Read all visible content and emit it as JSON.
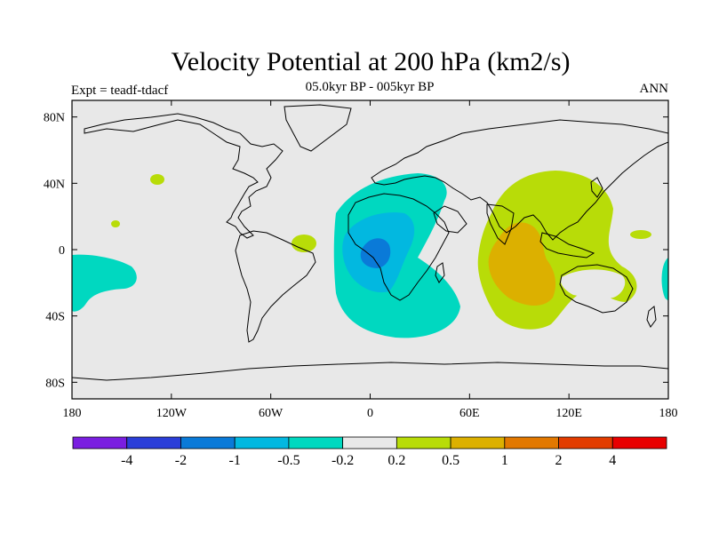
{
  "header": {
    "title": "Velocity Potential at 200 hPa (km2/s)",
    "subtitle": "05.0kyr BP - 005kyr BP",
    "left_label": "Expt = teadf-tdacf",
    "right_label": "ANN"
  },
  "chart_data": {
    "type": "heatmap",
    "variable": "velocity potential at 200 hPa",
    "units": "km2/s",
    "xlim": [
      -180,
      180
    ],
    "ylim": [
      -90,
      90
    ],
    "x_ticks": [
      {
        "value": -180,
        "label": "180"
      },
      {
        "value": -120,
        "label": "120W"
      },
      {
        "value": -60,
        "label": "60W"
      },
      {
        "value": 0,
        "label": "0"
      },
      {
        "value": 60,
        "label": "60E"
      },
      {
        "value": 120,
        "label": "120E"
      },
      {
        "value": 180,
        "label": "180"
      }
    ],
    "y_ticks": [
      {
        "value": 80,
        "label": "80N"
      },
      {
        "value": 40,
        "label": "40N"
      },
      {
        "value": 0,
        "label": "0"
      },
      {
        "value": -40,
        "label": "40S"
      },
      {
        "value": -80,
        "label": "80S"
      }
    ],
    "background_color": "#e8e8e8",
    "colorbar": {
      "boundaries": [
        "-4",
        "-2",
        "-1",
        "-0.5",
        "-0.2",
        "0.2",
        "0.5",
        "1",
        "2",
        "4"
      ],
      "colors": [
        "#7a1ee0",
        "#2a3ed8",
        "#0a7ad8",
        "#02b8e0",
        "#00d8c0",
        "#e8e8e8",
        "#b8dc08",
        "#dcb000",
        "#e27800",
        "#e23c00",
        "#e80000"
      ]
    },
    "regions": [
      {
        "name": "african-negative-outer",
        "level": "-0.5 to -0.2",
        "color": "#00d8c0",
        "center": [
          10,
          -10
        ]
      },
      {
        "name": "african-negative-mid",
        "level": "-1 to -0.5",
        "color": "#02b8e0",
        "center": [
          5,
          -5
        ]
      },
      {
        "name": "african-negative-core",
        "level": "-2 to -1",
        "color": "#0a7ad8",
        "center": [
          3,
          -3
        ]
      },
      {
        "name": "east-pacific-negative",
        "level": "-0.5 to -0.2",
        "color": "#00d8c0",
        "center": [
          -165,
          -20
        ]
      },
      {
        "name": "indian-ocean-positive-outer",
        "level": "0.2 to 0.5",
        "color": "#b8dc08",
        "center": [
          90,
          10
        ]
      },
      {
        "name": "indian-ocean-positive-core",
        "level": "0.5 to 1",
        "color": "#dcb000",
        "center": [
          85,
          -10
        ]
      },
      {
        "name": "west-pacific-small-negative",
        "level": "-0.5 to -0.2",
        "color": "#00d8c0",
        "center": [
          178,
          -20
        ]
      }
    ]
  }
}
